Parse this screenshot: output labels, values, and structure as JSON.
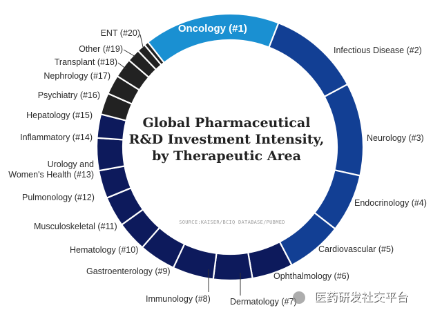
{
  "chart_data": {
    "type": "pie",
    "title_lines": [
      "Global Pharmaceutical",
      "R&D Investment Intensity,",
      "by Therapeutic Area"
    ],
    "source": "SOURCE:KAISER/BCIQ DATABASE/PUBMED",
    "categories": [
      "Oncology (#1)",
      "Infectious Disease (#2)",
      "Neurology (#3)",
      "Endocrinology (#4)",
      "Cardiovascular (#5)",
      "Ophthalmology (#6)",
      "Dermatology (#7)",
      "Immunology (#8)",
      "Gastroenterology (#9)",
      "Hematology (#10)",
      "Musculoskeletal (#11)",
      "Pulmonology (#12)",
      "Urology and\nWomen's Health (#13)",
      "Inflammatory (#14)",
      "Hepatology (#15)",
      "Psychiatry (#16)",
      "Nephrology (#17)",
      "Transplant (#18)",
      "Other (#19)",
      "ENT (#20)"
    ],
    "values": [
      63,
      43,
      43,
      27,
      26,
      19,
      18,
      19,
      17,
      14,
      14,
      13,
      15,
      11,
      10,
      9,
      9,
      6,
      4,
      2
    ],
    "colors": [
      "#1a90d2",
      "#123f94",
      "#123f94",
      "#123f94",
      "#123f94",
      "#0d1a5c",
      "#0d1a5c",
      "#0d1a5c",
      "#0d1a5c",
      "#0d1a5c",
      "#0d1a5c",
      "#0d1a5c",
      "#0d1a5c",
      "#0d1a5c",
      "#222222",
      "#222222",
      "#222222",
      "#222222",
      "#222222",
      "#222222"
    ]
  },
  "watermark": "医药研发社交平台"
}
